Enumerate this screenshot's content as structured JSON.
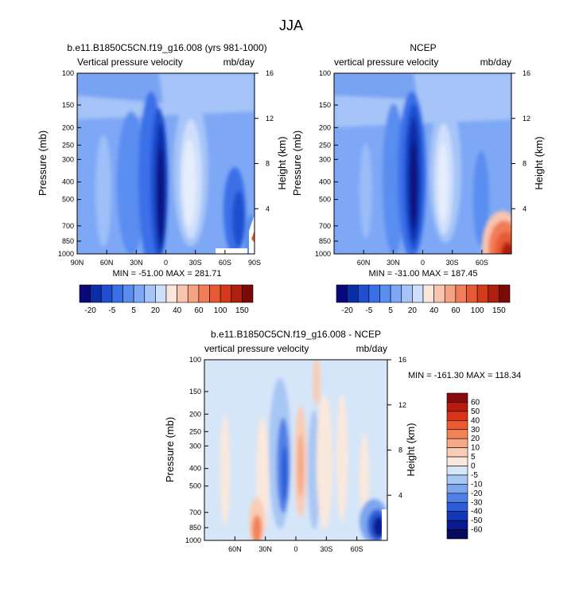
{
  "page": {
    "title": "JJA"
  },
  "chart_data": [
    {
      "type": "heatmap",
      "title": "b.e11.B1850C5CN.f19_g16.008 (yrs 981-1000)",
      "subtitle_left": "Vertical pressure velocity",
      "subtitle_right": "mb/day",
      "ylabel": "Pressure (mb)",
      "ylabel_right": "Height (km)",
      "x_ticks": [
        "90N",
        "60N",
        "30N",
        "0",
        "30S",
        "60S",
        "90S"
      ],
      "y_ticks": [
        "100",
        "150",
        "200",
        "250",
        "300",
        "400",
        "500",
        "700",
        "850",
        "1000"
      ],
      "y_ticks_right": [
        "16",
        "12",
        "8",
        "4"
      ],
      "stats": "MIN = -51.00   MAX = 281.71",
      "colorbar_labels": [
        "-20",
        "-5",
        "5",
        "20",
        "40",
        "60",
        "100",
        "150"
      ],
      "colorbar_colors": [
        "#08087a",
        "#0a2ea8",
        "#1f4fd0",
        "#3a6fe8",
        "#5a8df0",
        "#7ea8f5",
        "#a6c4f8",
        "#cfdffb",
        "#fbe6dc",
        "#f8c4b0",
        "#f4a284",
        "#f07c58",
        "#e85a34",
        "#d43a1c",
        "#b01e0e",
        "#7a0a06"
      ],
      "ylim": [
        1000,
        100
      ]
    },
    {
      "type": "heatmap",
      "title": "NCEP",
      "subtitle_left": "vertical pressure velocity",
      "subtitle_right": "mb/day",
      "ylabel": "Pressure (mb)",
      "ylabel_right": "Height (km)",
      "x_ticks": [
        "60N",
        "30N",
        "0",
        "30S",
        "60S"
      ],
      "y_ticks": [
        "100",
        "150",
        "200",
        "250",
        "300",
        "400",
        "500",
        "700",
        "850",
        "1000"
      ],
      "y_ticks_right": [
        "16",
        "12",
        "8",
        "4"
      ],
      "stats": "MIN = -31.00   MAX = 187.45",
      "colorbar_labels": [
        "-20",
        "-5",
        "5",
        "20",
        "40",
        "60",
        "100",
        "150"
      ],
      "colorbar_colors": [
        "#08087a",
        "#0a2ea8",
        "#1f4fd0",
        "#3a6fe8",
        "#5a8df0",
        "#7ea8f5",
        "#a6c4f8",
        "#cfdffb",
        "#fbe6dc",
        "#f8c4b0",
        "#f4a284",
        "#f07c58",
        "#e85a34",
        "#d43a1c",
        "#b01e0e",
        "#7a0a06"
      ],
      "ylim": [
        1000,
        100
      ]
    },
    {
      "type": "heatmap",
      "title": "b.e11.B1850C5CN.f19_g16.008 - NCEP",
      "subtitle_left": "vertical pressure velocity",
      "subtitle_right": "mb/day",
      "ylabel": "Pressure (mb)",
      "ylabel_right": "Height (km)",
      "x_ticks": [
        "60N",
        "30N",
        "0",
        "30S",
        "60S"
      ],
      "y_ticks": [
        "100",
        "150",
        "200",
        "250",
        "300",
        "400",
        "500",
        "700",
        "850",
        "1000"
      ],
      "y_ticks_right": [
        "16",
        "12",
        "8",
        "4"
      ],
      "stats": "MIN = -161.30   MAX = 118.34",
      "colorbar_labels": [
        "60",
        "50",
        "40",
        "30",
        "20",
        "10",
        "5",
        "0",
        "-5",
        "-10",
        "-20",
        "-30",
        "-40",
        "-50",
        "-60"
      ],
      "colorbar_colors": [
        "#8a0a0a",
        "#b81a10",
        "#d83418",
        "#ec5a30",
        "#f28258",
        "#f6a888",
        "#f9ccb6",
        "#fbe8dc",
        "#d6e6f9",
        "#a8c6f4",
        "#7ea6ee",
        "#5080e6",
        "#2c5cd8",
        "#1436b8",
        "#0a1a90",
        "#050a5c"
      ],
      "ylim": [
        1000,
        100
      ]
    }
  ]
}
